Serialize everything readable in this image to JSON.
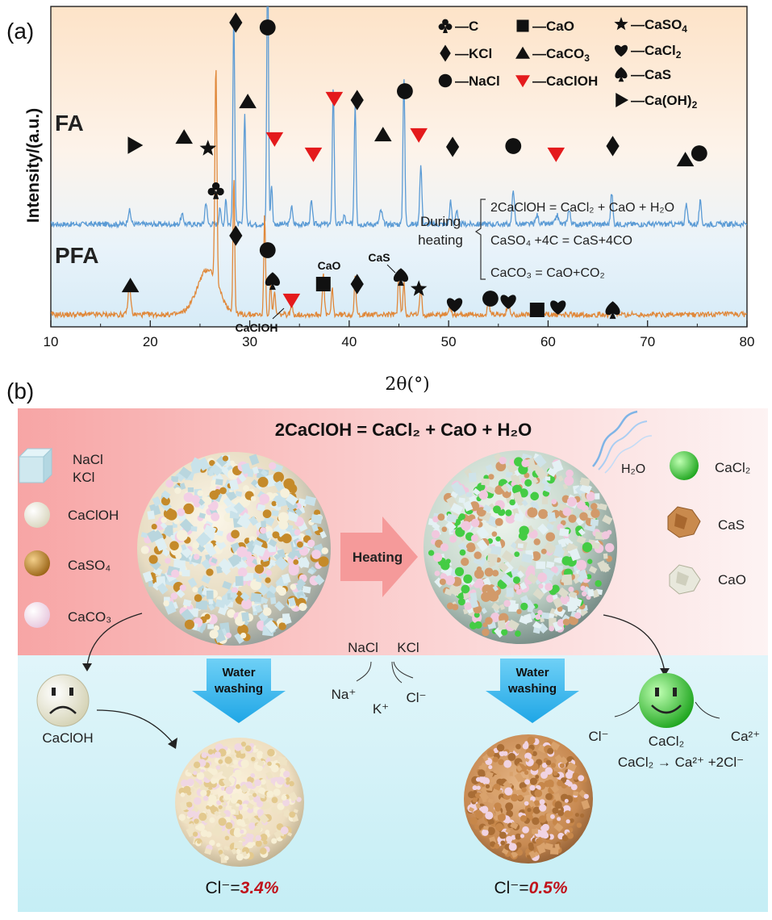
{
  "panel_a": {
    "label": "(a)",
    "ylabel": "Intensity/(a.u.)",
    "xlabel": "2θ(°)",
    "fa_label": "FA",
    "pfa_label": "PFA",
    "legend": [
      {
        "sym": "club",
        "text": "—C"
      },
      {
        "sym": "square",
        "text": "—CaO"
      },
      {
        "sym": "star",
        "text": "—CaSO",
        "sub": "4"
      },
      {
        "sym": "diamond",
        "text": "—KCl"
      },
      {
        "sym": "triangle",
        "text": "—CaCO",
        "sub": "3"
      },
      {
        "sym": "heart",
        "text": "—CaCl",
        "sub": "2"
      },
      {
        "sym": "circle",
        "text": "—NaCl"
      },
      {
        "sym": "redtriangle",
        "text": "—CaClOH"
      },
      {
        "sym": "spade",
        "text": "—CaS"
      },
      {
        "sym": "rtriangle",
        "text": "—Ca(OH)",
        "sub": "2"
      }
    ],
    "during_heating": [
      "During",
      "heating"
    ],
    "eq1": "2CaClOH = CaCl₂ + CaO + H₂O",
    "eq2": "CaSO₄ +4C = CaS+4CO",
    "eq3": "CaCO₃ = CaO+CO₂",
    "annot_cao": "CaO",
    "annot_cas": "CaS",
    "annot_caclooh": "CaClOH"
  },
  "chart_data": {
    "type": "line",
    "xlabel": "2θ(°)",
    "ylabel": "Intensity/(a.u.)",
    "xlim": [
      10,
      80
    ],
    "xticks": [
      10,
      20,
      30,
      40,
      50,
      60,
      70,
      80
    ],
    "series": [
      {
        "name": "FA",
        "color": "#5b9bd5",
        "baseline": 0.22,
        "peaks": [
          [
            17.9,
            0.03,
            0.2
          ],
          [
            23.2,
            0.02,
            0.2
          ],
          [
            25.6,
            0.05,
            0.15
          ],
          [
            27.0,
            0.04,
            0.12
          ],
          [
            27.6,
            0.06,
            0.12
          ],
          [
            28.4,
            0.47,
            0.13
          ],
          [
            29.5,
            0.25,
            0.13
          ],
          [
            31.8,
            0.62,
            0.12
          ],
          [
            32.2,
            0.09,
            0.12
          ],
          [
            34.2,
            0.04,
            0.15
          ],
          [
            36.2,
            0.05,
            0.15
          ],
          [
            38.4,
            0.31,
            0.13
          ],
          [
            39.5,
            0.02,
            0.15
          ],
          [
            40.6,
            0.27,
            0.13
          ],
          [
            43.2,
            0.03,
            0.2
          ],
          [
            45.5,
            0.33,
            0.13
          ],
          [
            47.2,
            0.13,
            0.15
          ],
          [
            50.2,
            0.05,
            0.15
          ],
          [
            50.8,
            0.03,
            0.15
          ],
          [
            56.5,
            0.08,
            0.15
          ],
          [
            58.9,
            0.02,
            0.2
          ],
          [
            60.9,
            0.02,
            0.2
          ],
          [
            62.1,
            0.03,
            0.2
          ],
          [
            66.4,
            0.07,
            0.15
          ],
          [
            73.9,
            0.05,
            0.15
          ],
          [
            75.3,
            0.05,
            0.15
          ]
        ]
      },
      {
        "name": "PFA",
        "color": "#e0883a",
        "baseline": 0.02,
        "peaks": [
          [
            17.9,
            0.06,
            0.2
          ],
          [
            25.8,
            0.1,
            1.5
          ],
          [
            26.6,
            0.48,
            0.14
          ],
          [
            28.4,
            0.3,
            0.12
          ],
          [
            31.5,
            0.22,
            0.12
          ],
          [
            32.1,
            0.07,
            0.12
          ],
          [
            32.5,
            0.05,
            0.12
          ],
          [
            34.2,
            0.02,
            0.15
          ],
          [
            37.4,
            0.09,
            0.14
          ],
          [
            38.3,
            0.06,
            0.12
          ],
          [
            40.6,
            0.08,
            0.13
          ],
          [
            45.0,
            0.1,
            0.13
          ],
          [
            45.5,
            0.07,
            0.13
          ],
          [
            47.2,
            0.06,
            0.14
          ],
          [
            50.1,
            0.015,
            0.2
          ],
          [
            54.0,
            0.03,
            0.15
          ],
          [
            56.0,
            0.02,
            0.2
          ],
          [
            58.9,
            0.01,
            0.2
          ],
          [
            66.5,
            0.015,
            0.2
          ]
        ]
      }
    ]
  },
  "panel_b": {
    "label": "(b)",
    "title": "2CaClOH = CaCl₂ + CaO + H₂O",
    "left_legend": [
      {
        "name": "nacl-kcl-swatch",
        "lines": [
          "NaCl",
          "KCl"
        ]
      },
      {
        "name": "caclooh-swatch",
        "lines": [
          "CaClOH"
        ]
      },
      {
        "name": "caso4-swatch",
        "lines": [
          "CaSO₄"
        ]
      },
      {
        "name": "caco3-swatch",
        "lines": [
          "CaCO₃"
        ]
      }
    ],
    "right_legend": [
      "CaCl₂",
      "CaS",
      "CaO"
    ],
    "h2o": "H₂O",
    "heating": "Heating",
    "water_washing": [
      "Water",
      "washing"
    ],
    "nacl": "NaCl",
    "kcl": "KCl",
    "na_ion": "Na⁺",
    "k_ion": "K⁺",
    "cl_ion": "Cl⁻",
    "sad_label": "CaClOH",
    "happy_label": "CaCl₂",
    "happy_cl": "Cl⁻",
    "happy_ca": "Ca²⁺",
    "dissociation": "CaCl₂ → Ca²⁺ +2Cl⁻",
    "cl_prefix": "Cl⁻=",
    "cl_left": "3.4%",
    "cl_right": "0.5%"
  },
  "colors": {
    "fa_line": "#5b9bd5",
    "pfa_line": "#e0883a",
    "marker_red": "#e41a1c",
    "percent_red": "#c0121b",
    "arrow_blue": "#35b6ec",
    "heating_pink": "#f59a9a",
    "green": "#3fd43f"
  }
}
